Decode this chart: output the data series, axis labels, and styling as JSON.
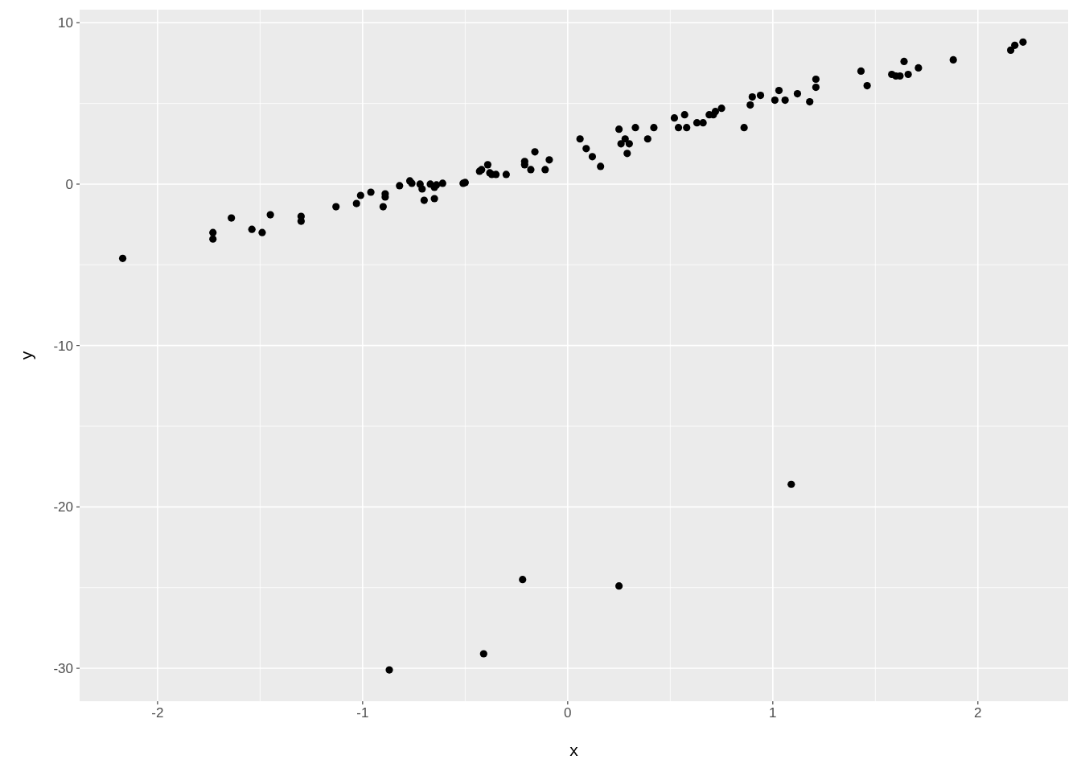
{
  "chart_data": {
    "type": "scatter",
    "xlabel": "x",
    "ylabel": "y",
    "xlim": [
      -2.38,
      2.44
    ],
    "ylim": [
      -32.04,
      10.81
    ],
    "xticks": [
      -2,
      -1,
      0,
      1,
      2
    ],
    "yticks": [
      -30,
      -20,
      -10,
      0,
      10
    ],
    "grid": true,
    "marker": "circle",
    "series": [
      {
        "color": "#000000",
        "x": [
          -2.17,
          -1.73,
          -1.73,
          -1.64,
          -1.54,
          -1.49,
          -1.45,
          -1.3,
          -1.3,
          -1.13,
          -1.03,
          -1.01,
          -0.96,
          -0.9,
          -0.89,
          -0.89,
          -0.82,
          -0.77,
          -0.76,
          -0.72,
          -0.71,
          -0.7,
          -0.67,
          -0.65,
          -0.65,
          -0.64,
          -0.61,
          -0.51,
          -0.5,
          -0.43,
          -0.42,
          -0.39,
          -0.38,
          -0.37,
          -0.35,
          -0.3,
          -0.21,
          -0.21,
          -0.18,
          -0.16,
          -0.11,
          -0.09,
          0.06,
          0.09,
          0.12,
          0.16,
          0.25,
          0.26,
          0.28,
          0.3,
          0.29,
          0.33,
          0.39,
          0.42,
          0.52,
          0.54,
          0.57,
          0.58,
          0.63,
          0.66,
          0.69,
          0.71,
          0.72,
          0.75,
          0.86,
          0.89,
          0.9,
          0.94,
          1.01,
          1.03,
          1.06,
          1.12,
          1.18,
          1.21,
          1.21,
          1.43,
          1.46,
          1.58,
          1.6,
          1.62,
          1.64,
          1.66,
          1.71,
          1.88,
          2.16,
          2.18,
          2.22,
          -0.87,
          -0.41,
          -0.22,
          0.25,
          1.09
        ],
        "values": [
          -4.6,
          -3.0,
          -3.4,
          -2.1,
          -2.8,
          -3.0,
          -1.9,
          -2.0,
          -2.3,
          -1.4,
          -1.2,
          -0.7,
          -0.5,
          -1.4,
          -0.8,
          -0.6,
          -0.1,
          0.2,
          0.05,
          0.0,
          -0.3,
          -1.0,
          0.0,
          -0.9,
          -0.2,
          -0.05,
          0.05,
          0.05,
          0.1,
          0.8,
          0.9,
          1.2,
          0.7,
          0.6,
          0.6,
          0.6,
          1.4,
          1.2,
          0.9,
          2.0,
          0.9,
          1.5,
          2.8,
          2.2,
          1.7,
          1.1,
          3.4,
          2.5,
          2.8,
          2.5,
          1.9,
          3.5,
          2.8,
          3.5,
          4.1,
          3.5,
          4.3,
          3.5,
          3.8,
          3.8,
          4.3,
          4.3,
          4.5,
          4.7,
          3.5,
          4.9,
          5.4,
          5.5,
          5.2,
          5.8,
          5.2,
          5.6,
          5.1,
          6.5,
          6.0,
          7.0,
          6.1,
          6.8,
          6.7,
          6.7,
          7.6,
          6.8,
          7.2,
          7.7,
          8.3,
          8.6,
          8.8,
          -30.1,
          -29.1,
          -24.5,
          -24.9,
          -18.6
        ]
      }
    ]
  }
}
